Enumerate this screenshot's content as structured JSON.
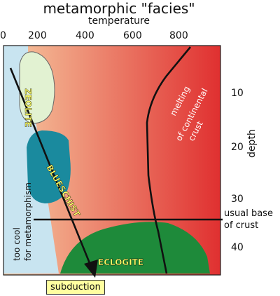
{
  "header": {
    "title": "metamorphic \"facies\"",
    "x_axis_label": "temperature",
    "y_axis_label": "depth"
  },
  "temperature_ticks": [
    "0",
    "200",
    "400",
    "600",
    "800"
  ],
  "depth_ticks": [
    "10",
    "20",
    "30",
    "40"
  ],
  "regions": {
    "zeolite": "ZEOLITE",
    "blueschist": "BLUESCHIST",
    "eclogite": "ECLOGITE",
    "too_cool_line1": "too cool",
    "too_cool_line2": "for metamorphism",
    "melting_line1": "melting",
    "melting_line2": "of continental",
    "melting_line3": "crust"
  },
  "crust_base": {
    "line1": "usual base",
    "line2": "of crust"
  },
  "subduction_label": "subduction",
  "colors": {
    "cool_blue": "#c8e4f0",
    "warm_start": "#f6c9a0",
    "warm_end": "#e03030",
    "zeolite_fill": "#e2f2d2",
    "blueschist_fill": "#1a8a9e",
    "eclogite_fill": "#1e8a3a",
    "label_yellow": "#ffff66",
    "subduction_box": "#ffffa0"
  }
}
